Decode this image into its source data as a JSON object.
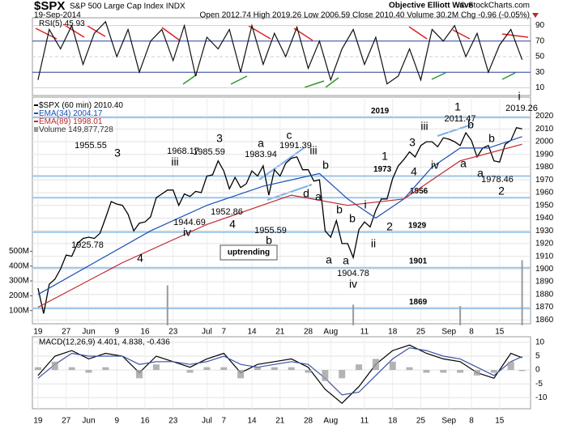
{
  "header": {
    "symbol": "$SPX",
    "name": "S&P 500 Large Cap Index INDX",
    "date": "19-Sep-2014",
    "stats": "Open 2012.74 High 2019.26 Low 2006.59 Close 2010.40 Volume 30.2M Chg -0.96 (-0.05%)",
    "source": "Objective Elliott Wave",
    "credit": "© StockCharts.com"
  },
  "chart_data": [
    {
      "type": "line",
      "xlim": [
        -1,
        87.5
      ],
      "ylim": [
        0,
        100
      ],
      "yticks": [
        10,
        30,
        50,
        70,
        90
      ],
      "series": [
        {
          "name": "RSI(5)",
          "legend_value": "45.93",
          "color": "#111111",
          "x": [
            0,
            2,
            4,
            6,
            8,
            10,
            12,
            14,
            16,
            18,
            20,
            22,
            24,
            26,
            28,
            30,
            32,
            34,
            36,
            38,
            40,
            42,
            44,
            46,
            48,
            50,
            52,
            54,
            56,
            58,
            60,
            62,
            64,
            66,
            68,
            70,
            72,
            74,
            76,
            78,
            80,
            82,
            84,
            86
          ],
          "values": [
            20,
            85,
            60,
            90,
            40,
            80,
            95,
            50,
            85,
            30,
            70,
            85,
            45,
            90,
            25,
            75,
            60,
            85,
            30,
            90,
            40,
            80,
            50,
            88,
            35,
            70,
            20,
            60,
            85,
            40,
            75,
            15,
            25,
            60,
            20,
            85,
            70,
            90,
            50,
            80,
            30,
            65,
            85,
            46
          ]
        }
      ]
    },
    {
      "type": "line",
      "xlim": [
        -1,
        87.5
      ],
      "ylim": [
        1857,
        2035
      ],
      "yticks": [
        1860,
        1870,
        1880,
        1890,
        1900,
        1910,
        1920,
        1930,
        1940,
        1950,
        1960,
        1970,
        1980,
        1990,
        2000,
        2010,
        2020
      ],
      "xticks": [
        {
          "value": 0,
          "label": "19"
        },
        {
          "value": 5,
          "label": "27"
        },
        {
          "value": 9,
          "label": "Jun"
        },
        {
          "value": 14,
          "label": "9"
        },
        {
          "value": 19,
          "label": "16"
        },
        {
          "value": 24,
          "label": "23"
        },
        {
          "value": 30,
          "label": "Jul"
        },
        {
          "value": 33,
          "label": "7"
        },
        {
          "value": 38,
          "label": "14"
        },
        {
          "value": 43,
          "label": "21"
        },
        {
          "value": 48,
          "label": "28"
        },
        {
          "value": 52,
          "label": "Aug"
        },
        {
          "value": 58,
          "label": "11"
        },
        {
          "value": 63,
          "label": "18"
        },
        {
          "value": 68,
          "label": "25"
        },
        {
          "value": 73,
          "label": "Sep"
        },
        {
          "value": 77,
          "label": "8"
        },
        {
          "value": 82,
          "label": "15"
        }
      ],
      "series": [
        {
          "name": "$SPX (60 min)",
          "legend_value": "2010.40",
          "color": "#000000",
          "x": [
            0,
            1,
            2,
            3,
            4,
            5,
            6,
            7,
            8,
            9,
            10,
            11,
            12,
            13,
            14,
            15,
            16,
            17,
            18,
            19,
            20,
            21,
            22,
            23,
            24,
            25,
            26,
            27,
            28,
            29,
            30,
            31,
            32,
            33,
            34,
            35,
            36,
            37,
            38,
            39,
            40,
            41,
            42,
            43,
            44,
            45,
            46,
            47,
            48,
            49,
            50,
            51,
            52,
            53,
            54,
            55,
            56,
            57,
            58,
            59,
            60,
            61,
            62,
            63,
            64,
            65,
            66,
            67,
            68,
            69,
            70,
            71,
            72,
            73,
            74,
            75,
            76,
            77,
            78,
            79,
            80,
            81,
            82,
            83,
            84,
            85,
            86
          ],
          "values": [
            1885,
            1865,
            1888,
            1892,
            1900,
            1911,
            1910,
            1920,
            1924,
            1925,
            1924,
            1928,
            1940,
            1953,
            1951,
            1950,
            1943,
            1930,
            1936,
            1937,
            1941,
            1956,
            1959,
            1962,
            1962,
            1950,
            1959,
            1957,
            1961,
            1960,
            1973,
            1974,
            1985,
            1977,
            1963,
            1972,
            1964,
            1967,
            1977,
            1973,
            1981,
            1958,
            1978,
            1973,
            1983,
            1987,
            1988,
            1978,
            1978,
            1969,
            1970,
            1930,
            1925,
            1938,
            1920,
            1920,
            1909,
            1931,
            1937,
            1933,
            1946,
            1955,
            1955,
            1971,
            1981,
            1986,
            1992,
            1988,
            1997,
            2000,
            2000,
            1996,
            2003,
            2002,
            2000,
            1997,
            2007,
            2001,
            1988,
            1995,
            1997,
            1985,
            1984,
            1998,
            2001,
            2011,
            2010
          ]
        },
        {
          "name": "EMA(34)",
          "legend_value": "2004.17",
          "color": "#1a4fb5",
          "x": [
            0,
            10,
            20,
            30,
            40,
            50,
            55,
            60,
            65,
            70,
            75,
            80,
            86
          ],
          "values": [
            1880,
            1905,
            1930,
            1950,
            1965,
            1975,
            1955,
            1940,
            1955,
            1980,
            1995,
            1995,
            2004
          ]
        },
        {
          "name": "EMA(89)",
          "legend_value": "1998.01",
          "color": "#c0282d",
          "x": [
            0,
            15,
            30,
            45,
            55,
            65,
            75,
            86
          ],
          "values": [
            1870,
            1905,
            1935,
            1958,
            1950,
            1955,
            1985,
            1998
          ]
        }
      ],
      "volume": {
        "name": "Volume",
        "legend_value": "149,877,728",
        "color": "#9a9a9a",
        "x": [
          23,
          56,
          75,
          86
        ],
        "values": [
          270,
          140,
          130,
          440
        ]
      },
      "y2lim": [
        0,
        1540
      ],
      "y2ticks": [
        {
          "value": 100,
          "label": "100M"
        },
        {
          "value": 200,
          "label": "200M"
        },
        {
          "value": 300,
          "label": "300M"
        },
        {
          "value": 400,
          "label": "400M"
        },
        {
          "value": 500,
          "label": "500M"
        }
      ],
      "levels": [
        2019,
        1973,
        1956,
        1929,
        1901,
        1869
      ],
      "note": "uptrending",
      "annotations": [
        {
          "text": "3",
          "color": "#e07818"
        },
        {
          "text": "1955.55",
          "color": "#000000"
        },
        {
          "text": "4",
          "color": "#e07818"
        },
        {
          "text": "1925.78",
          "color": "#000000"
        },
        {
          "text": "iii",
          "color": "#2e8b2e"
        },
        {
          "text": "1968.17",
          "color": "#000000"
        },
        {
          "text": "1944.69",
          "color": "#000000"
        },
        {
          "text": "iv",
          "color": "#2e8b2e"
        },
        {
          "text": "3",
          "color": "#2b2b8a"
        },
        {
          "text": "1985.59",
          "color": "#000000"
        },
        {
          "text": "4",
          "color": "#2b2b8a"
        },
        {
          "text": "1952.86",
          "color": "#000000"
        },
        {
          "text": "a",
          "color": "#2e8b2e"
        },
        {
          "text": "1983.94",
          "color": "#000000"
        },
        {
          "text": "c",
          "color": "#1f6f7a"
        },
        {
          "text": "1991.39",
          "color": "#000000"
        },
        {
          "text": "iii",
          "color": "#5a2a6a"
        },
        {
          "text": "b",
          "color": "#1f6f7a"
        },
        {
          "text": "a",
          "color": "#1f6f7a"
        },
        {
          "text": "d",
          "color": "#1f6f7a"
        },
        {
          "text": "b",
          "color": "#1f6f7a"
        },
        {
          "text": "1955.59",
          "color": "#000000"
        },
        {
          "text": "b",
          "color": "#1f6f7a"
        },
        {
          "text": "a",
          "color": "#2b2b8a"
        },
        {
          "text": "i",
          "color": "#1f6f7a"
        },
        {
          "text": "b",
          "color": "#1f6f7a"
        },
        {
          "text": "a",
          "color": "#1f6f7a"
        },
        {
          "text": "iv",
          "color": "#5a2a6a"
        },
        {
          "text": "1904.78",
          "color": "#000000"
        },
        {
          "text": "ii",
          "color": "#2e8b2e"
        },
        {
          "text": "1",
          "color": "#e07818"
        },
        {
          "text": "2",
          "color": "#e07818"
        },
        {
          "text": "3",
          "color": "#e07818"
        },
        {
          "text": "4",
          "color": "#e07818"
        },
        {
          "text": "iii",
          "color": "#2e8b2e"
        },
        {
          "text": "iv",
          "color": "#1f6f7a"
        },
        {
          "text": "1",
          "color": "#2b2b8a"
        },
        {
          "text": "2011.47",
          "color": "#000000"
        },
        {
          "text": "b",
          "color": "#1f6f7a"
        },
        {
          "text": "a",
          "color": "#2e8b2e"
        },
        {
          "text": "b",
          "color": "#e07818"
        },
        {
          "text": "a",
          "color": "#e07818"
        },
        {
          "text": "1978.46",
          "color": "#000000"
        },
        {
          "text": "2",
          "color": "#2b2b8a"
        },
        {
          "text": "i",
          "color": "#2e8b2e"
        },
        {
          "text": "2019.26",
          "color": "#000000"
        }
      ]
    },
    {
      "type": "line",
      "xlim": [
        -1,
        87.5
      ],
      "ylim": [
        -14,
        12
      ],
      "yticks": [
        -10,
        -5,
        0,
        5,
        10
      ],
      "legend": "MACD(12,26,9) 4.401, 4.838, -0.436",
      "xticks": [
        {
          "value": 0,
          "label": "19"
        },
        {
          "value": 5,
          "label": "27"
        },
        {
          "value": 9,
          "label": "Jun"
        },
        {
          "value": 14,
          "label": "9"
        },
        {
          "value": 19,
          "label": "16"
        },
        {
          "value": 24,
          "label": "23"
        },
        {
          "value": 30,
          "label": "Jul"
        },
        {
          "value": 33,
          "label": "7"
        },
        {
          "value": 38,
          "label": "14"
        },
        {
          "value": 43,
          "label": "21"
        },
        {
          "value": 48,
          "label": "28"
        },
        {
          "value": 52,
          "label": "Aug"
        },
        {
          "value": 58,
          "label": "11"
        },
        {
          "value": 63,
          "label": "18"
        },
        {
          "value": 68,
          "label": "25"
        },
        {
          "value": 73,
          "label": "Sep"
        },
        {
          "value": 77,
          "label": "8"
        },
        {
          "value": 82,
          "label": "15"
        }
      ],
      "series": [
        {
          "color": "#000000",
          "x": [
            0,
            3,
            6,
            9,
            12,
            15,
            18,
            21,
            24,
            27,
            30,
            33,
            36,
            39,
            42,
            45,
            48,
            51,
            54,
            57,
            60,
            63,
            66,
            69,
            72,
            75,
            78,
            81,
            84,
            86
          ],
          "values": [
            -2,
            5,
            7,
            4,
            6,
            5,
            -1,
            5,
            3,
            1,
            4,
            6,
            -1,
            2,
            3,
            4,
            1,
            -7,
            -12,
            -6,
            2,
            7,
            9,
            6,
            4,
            3,
            -1,
            -3,
            6,
            4.4
          ]
        },
        {
          "color": "#3a53a4",
          "x": [
            0,
            3,
            6,
            9,
            12,
            15,
            18,
            21,
            24,
            27,
            30,
            33,
            36,
            39,
            42,
            45,
            48,
            51,
            54,
            57,
            60,
            63,
            66,
            69,
            72,
            75,
            78,
            81,
            84,
            86
          ],
          "values": [
            -3,
            2,
            6,
            5,
            5,
            5,
            2,
            3,
            3,
            2,
            3,
            5,
            2,
            1,
            2,
            3,
            2,
            -3,
            -9,
            -8,
            -2,
            4,
            8,
            7,
            5,
            4,
            1,
            -2,
            3,
            4.8
          ]
        },
        {
          "type": "bar",
          "color": "#a0a0a0",
          "x": [
            0,
            3,
            6,
            9,
            12,
            15,
            18,
            21,
            24,
            27,
            30,
            33,
            36,
            39,
            42,
            45,
            48,
            51,
            54,
            57,
            60,
            63,
            66,
            69,
            72,
            75,
            78,
            81,
            84,
            86
          ],
          "values": [
            1,
            3,
            1,
            -1,
            1,
            0,
            -3,
            2,
            0,
            -1,
            1,
            1,
            -3,
            1,
            1,
            1,
            -1,
            -4,
            -3,
            2,
            4,
            3,
            1,
            -1,
            -1,
            -1,
            -2,
            -1,
            3,
            -0.4
          ]
        }
      ]
    }
  ]
}
